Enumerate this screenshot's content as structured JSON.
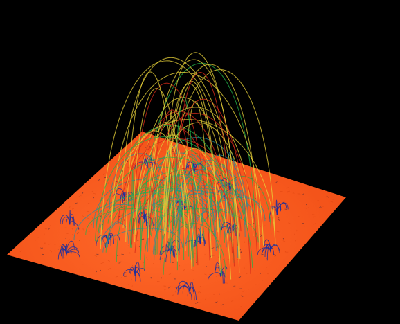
{
  "scene": {
    "subject": "coronal-magnetic-field-loops",
    "colors": {
      "background": "#000000",
      "surface": "#ff5a1f",
      "surface_shade": "#d8420f",
      "low_loops": "#1a2fa0",
      "mid_loops": "#22b04a",
      "high_loops": "#e8d23a",
      "hot_loops": "#d42a1a",
      "teal_loops": "#1f8fa0"
    }
  }
}
